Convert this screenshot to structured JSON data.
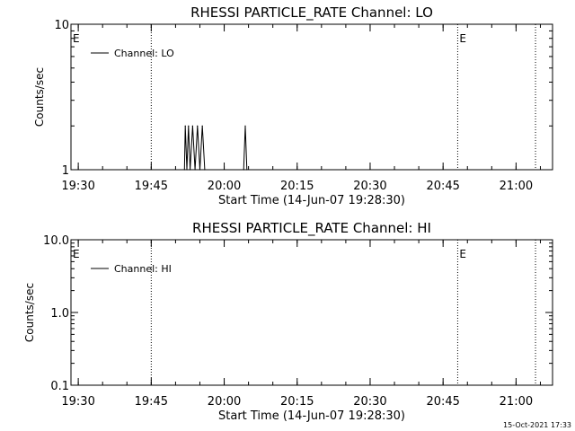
{
  "footer": "15-Oct-2021 17:33",
  "chart_data": [
    {
      "type": "line",
      "title": "RHESSI PARTICLE_RATE Channel: LO",
      "xlabel": "Start Time (14-Jun-07 19:28:30)",
      "ylabel": "Counts/sec",
      "x_ticks": [
        "19:30",
        "19:45",
        "20:00",
        "20:15",
        "20:30",
        "20:45",
        "21:00"
      ],
      "y_ticks": [
        "1",
        "10"
      ],
      "y_scale": "log",
      "ylim": [
        1,
        10
      ],
      "xlim": [
        "19:28:30",
        "21:07:30"
      ],
      "legend": {
        "entries": [
          "Channel: LO"
        ],
        "placement": "top-left"
      },
      "grid": false,
      "event_lines": [
        "19:45",
        "20:48",
        "21:04"
      ],
      "event_markers": [
        {
          "label": "E",
          "x": "19:28:30"
        },
        {
          "label": "E",
          "x": "20:48"
        }
      ],
      "series": [
        {
          "name": "Channel: LO",
          "x": [
            "19:51:50",
            "19:52:00",
            "19:52:20",
            "19:52:40",
            "19:53:00",
            "19:53:30",
            "19:54:00",
            "19:54:30",
            "19:55:00",
            "19:55:30",
            "19:56:00",
            "20:04:00",
            "20:04:20",
            "20:04:40"
          ],
          "values": [
            1,
            2,
            1,
            2,
            1,
            2,
            1,
            2,
            1,
            2,
            1,
            1,
            2,
            1
          ]
        }
      ]
    },
    {
      "type": "line",
      "title": "RHESSI PARTICLE_RATE Channel: HI",
      "xlabel": "Start Time (14-Jun-07 19:28:30)",
      "ylabel": "Counts/sec",
      "x_ticks": [
        "19:30",
        "19:45",
        "20:00",
        "20:15",
        "20:30",
        "20:45",
        "21:00"
      ],
      "y_ticks": [
        "0.1",
        "1.0",
        "10.0"
      ],
      "y_scale": "log",
      "ylim": [
        0.1,
        10
      ],
      "xlim": [
        "19:28:30",
        "21:07:30"
      ],
      "legend": {
        "entries": [
          "Channel: HI"
        ],
        "placement": "top-left"
      },
      "grid": false,
      "event_lines": [
        "19:45",
        "20:48",
        "21:04"
      ],
      "event_markers": [
        {
          "label": "E",
          "x": "19:28:30"
        },
        {
          "label": "E",
          "x": "20:48"
        }
      ],
      "series": [
        {
          "name": "Channel: HI",
          "x": [],
          "values": []
        }
      ]
    }
  ]
}
